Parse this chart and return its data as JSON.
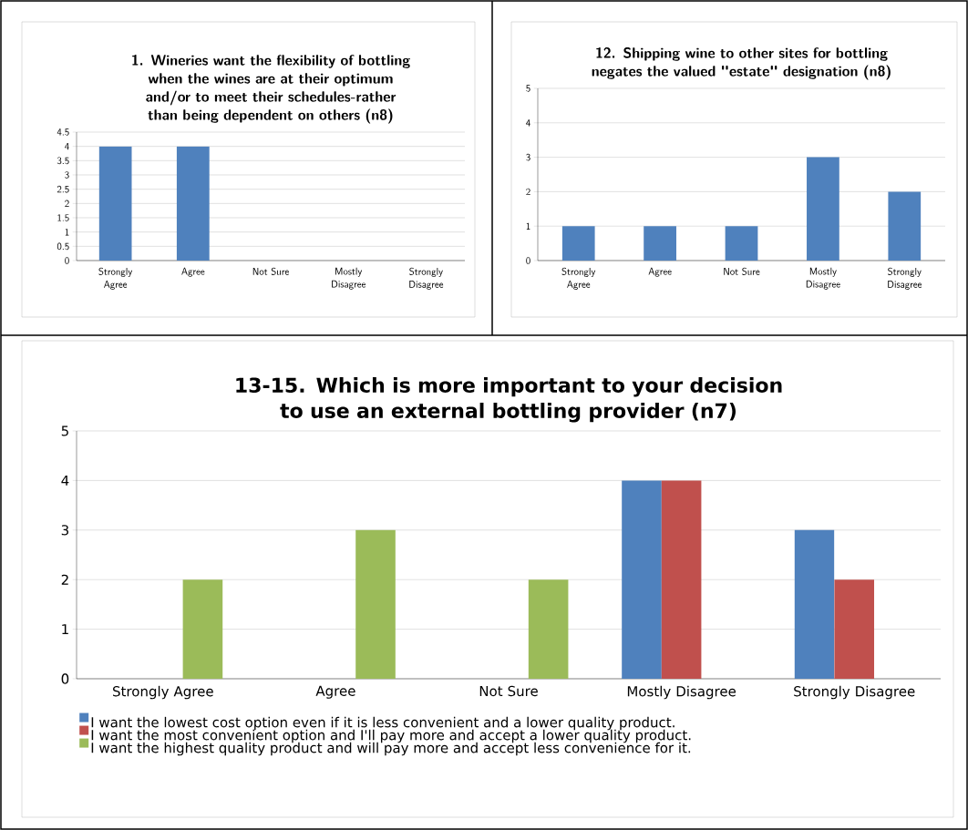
{
  "chart_data": [
    {
      "type": "bar",
      "title": "1. Wineries want the flexibility of bottling when the wines are at their optimum and/or to meet their schedules-rather than being dependent on others (n8)",
      "categories": [
        "Strongly Agree",
        "Agree",
        "Not Sure",
        "Mostly Disagree",
        "Strongly Disagree"
      ],
      "values": [
        4,
        4,
        0,
        0,
        0
      ],
      "color": "#4f81bd",
      "ylim": [
        0,
        4.5
      ],
      "yticks": [
        0,
        0.5,
        1,
        1.5,
        2,
        2.5,
        3,
        3.5,
        4,
        4.5
      ],
      "grid": "y"
    },
    {
      "type": "bar",
      "title": "12. Shipping wine to other sites for bottling negates the valued \"estate\" designation (n8)",
      "categories": [
        "Strongly Agree",
        "Agree",
        "Not Sure",
        "Mostly Disagree",
        "Strongly Disagree"
      ],
      "values": [
        1,
        1,
        1,
        3,
        2
      ],
      "color": "#4f81bd",
      "ylim": [
        0,
        5
      ],
      "yticks": [
        0,
        1,
        2,
        3,
        4,
        5
      ],
      "grid": "y"
    },
    {
      "type": "bar",
      "title": "13-15. Which is more important to your decision to use an external bottling provider (n7)",
      "categories": [
        "Strongly Agree",
        "Agree",
        "Not Sure",
        "Mostly Disagree",
        "Strongly Disagree"
      ],
      "series": [
        {
          "name": "I want the lowest cost option even if it is less convenient and a lower quality product.",
          "color": "#4f81bd",
          "values": [
            0,
            0,
            0,
            4,
            3
          ]
        },
        {
          "name": "I want the most convenient option and I'll pay more and accept a lower quality product.",
          "color": "#c0504d",
          "values": [
            0,
            0,
            0,
            4,
            2
          ]
        },
        {
          "name": "I want the highest quality product and will pay more and accept less convenience for it.",
          "color": "#9bbb59",
          "values": [
            2,
            3,
            2,
            0,
            0
          ]
        }
      ],
      "ylim": [
        0,
        5
      ],
      "yticks": [
        0,
        1,
        2,
        3,
        4,
        5
      ],
      "grid": "y",
      "legend": "bottom"
    }
  ]
}
